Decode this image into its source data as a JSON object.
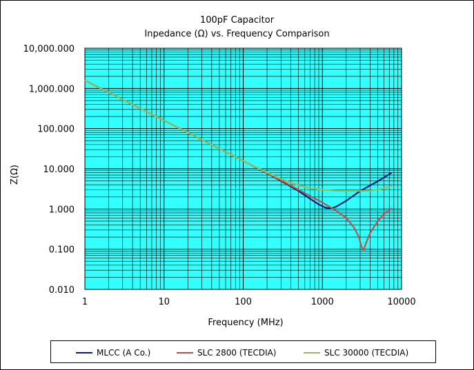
{
  "chart_data": {
    "type": "line",
    "title": "100pF Capacitor",
    "subtitle": "Inpedance (Ω) vs. Frequency Comparison",
    "xlabel": "Frequency (MHz)",
    "ylabel": "Z(Ω)",
    "x_scale": "log",
    "y_scale": "log",
    "xlim": [
      1,
      10000
    ],
    "ylim": [
      0.01,
      10000
    ],
    "x_ticks": [
      "1",
      "10",
      "100",
      "1000",
      "10000"
    ],
    "y_ticks": [
      "0.010",
      "0.100",
      "1.000",
      "10.000",
      "100.000",
      "1,000.000",
      "10,000.000"
    ],
    "grid": true,
    "plot_background": "#33FFFF",
    "legend_position": "bottom",
    "series": [
      {
        "name": "MLCC (A Co.)",
        "color": "#0A1A7A",
        "x": [
          1,
          10,
          100,
          200,
          300,
          500,
          700,
          900,
          1100,
          1300,
          1500,
          2000,
          3000,
          5000,
          7500
        ],
        "y": [
          1592,
          159,
          15.9,
          7.8,
          5.0,
          2.8,
          1.8,
          1.3,
          1.08,
          1.03,
          1.15,
          1.6,
          2.8,
          4.9,
          8.0
        ]
      },
      {
        "name": "SLC 2800 (TECDIA)",
        "color": "#C0504D",
        "x": [
          1,
          10,
          100,
          200,
          300,
          500,
          700,
          1000,
          1500,
          2000,
          2500,
          2900,
          3100,
          3300,
          3600,
          4000,
          5000,
          6000,
          7500
        ],
        "y": [
          1592,
          159,
          15.9,
          7.9,
          5.2,
          3.0,
          2.1,
          1.45,
          0.9,
          0.6,
          0.35,
          0.2,
          0.12,
          0.092,
          0.15,
          0.25,
          0.5,
          0.75,
          1.05
        ]
      },
      {
        "name": "SLC 30000 (TECDIA)",
        "color": "#9BBB59",
        "x": [
          1,
          10,
          100,
          200,
          300,
          500,
          700,
          1000,
          1500,
          2000,
          3000,
          4000,
          5000,
          6000,
          7500
        ],
        "y": [
          1592,
          159,
          15.9,
          8.1,
          5.6,
          3.9,
          3.3,
          3.0,
          2.85,
          2.8,
          2.8,
          2.85,
          3.0,
          3.25,
          3.7
        ]
      }
    ]
  }
}
